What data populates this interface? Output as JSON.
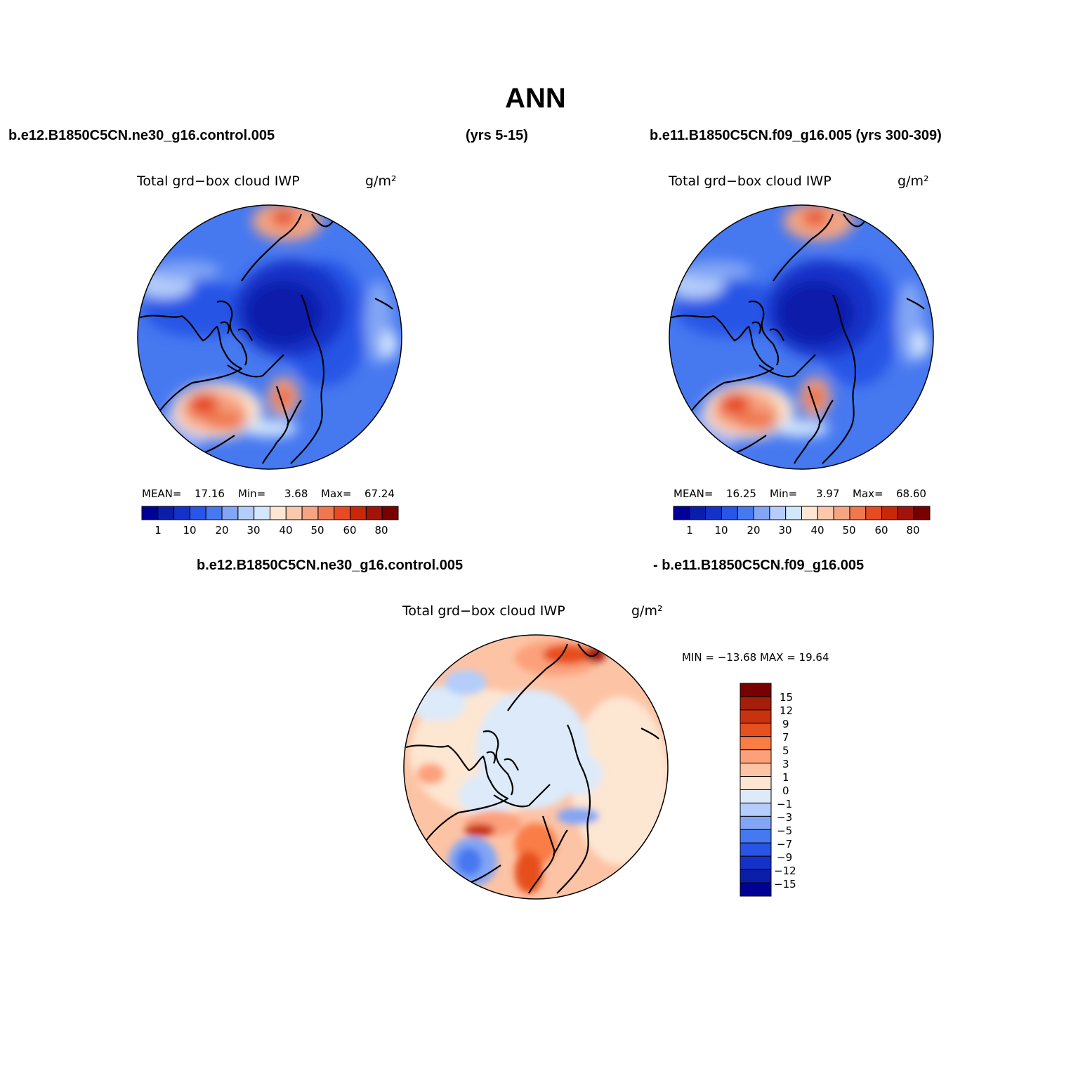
{
  "figure": {
    "title": "ANN",
    "left_case": "b.e12.B1850C5CN.ne30_g16.control.005",
    "left_years": "(yrs 5-15)",
    "right_case": "b.e11.B1850C5CN.f09_g16.005 (yrs 300-309)",
    "diff_left_case": "b.e12.B1850C5CN.ne30_g16.control.005",
    "diff_right_case": "- b.e11.B1850C5CN.f09_g16.005"
  },
  "panels": [
    {
      "variable": "Total grd−box cloud IWP",
      "units": "g/m²",
      "mean_label": "MEAN=",
      "mean": "17.16",
      "min_label": "Min=",
      "min": "3.68",
      "max_label": "Max=",
      "max": "67.24"
    },
    {
      "variable": "Total grd−box cloud IWP",
      "units": "g/m²",
      "mean_label": "MEAN=",
      "mean": "16.25",
      "min_label": "Min=",
      "min": "3.97",
      "max_label": "Max=",
      "max": "68.60"
    }
  ],
  "diff_panel": {
    "variable": "Total grd−box cloud IWP",
    "units": "g/m²",
    "minmax_text": "MIN = −13.68 MAX =  19.64"
  },
  "colorbar_abs": {
    "colors": [
      "#000096",
      "#0a1eaa",
      "#1432c8",
      "#2855e6",
      "#4678f0",
      "#82a5f5",
      "#b4cdfa",
      "#d2e6fc",
      "#fde6d2",
      "#fac8aa",
      "#f5a582",
      "#f07850",
      "#e64b23",
      "#c8280a",
      "#a0140a",
      "#780000"
    ],
    "tick_labels": [
      "1",
      "10",
      "20",
      "30",
      "40",
      "50",
      "60",
      "80"
    ]
  },
  "colorbar_diff": {
    "colors": [
      "#780000",
      "#a51e0a",
      "#c8320f",
      "#e6501e",
      "#fa7d46",
      "#fca07a",
      "#fdc3a5",
      "#fde6d2",
      "#dceafa",
      "#b4cdfa",
      "#82a5f5",
      "#4678f0",
      "#2855e6",
      "#1432c8",
      "#0a1eaa",
      "#000096"
    ],
    "labels": [
      "15",
      "12",
      "9",
      "7",
      "5",
      "3",
      "1",
      "0",
      "−1",
      "−3",
      "−5",
      "−7",
      "−9",
      "−12",
      "−15"
    ]
  }
}
